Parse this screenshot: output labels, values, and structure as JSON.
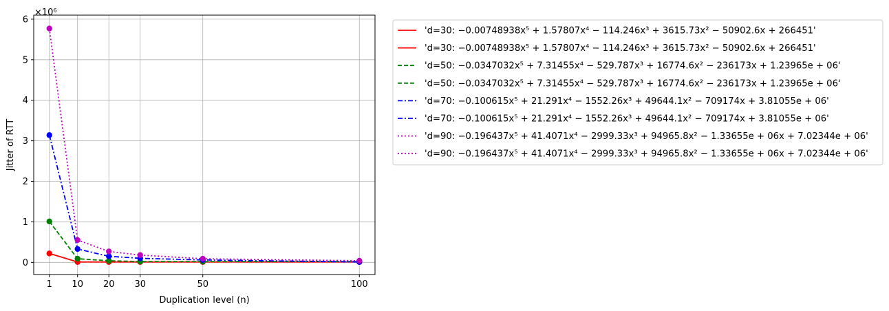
{
  "chart_data": {
    "type": "line",
    "title": "",
    "xlabel": "Duplication level (n)",
    "ylabel": "Jitter of RTT",
    "y_offset_text": "×10⁶",
    "x": [
      1,
      10,
      20,
      30,
      50,
      100
    ],
    "x_ticks": [
      "1",
      "10",
      "20",
      "30",
      "50",
      "100"
    ],
    "y_ticks": [
      "0",
      "1",
      "2",
      "3",
      "4",
      "5",
      "6"
    ],
    "y_tick_values": [
      0,
      1,
      2,
      3,
      4,
      5,
      6
    ],
    "xlim": [
      -4,
      105
    ],
    "ylim": [
      -0.3,
      6.1
    ],
    "grid": true,
    "legend_position": "outside-upper-right",
    "series": [
      {
        "name": "'d=30: −0.00748938x⁵ + 1.57807x⁴ − 114.246x³ + 3615.73x² − 50902.6x + 266451'",
        "color": "#ff0000",
        "dash": "solid",
        "values": [
          0.22,
          0.01,
          0.01,
          0.01,
          0.01,
          0.01
        ]
      },
      {
        "name": "'d=50: −0.0347032x⁵ + 7.31455x⁴ − 529.787x³ + 16774.6x² − 236173x + 1.23965e + 06'",
        "color": "#008000",
        "dash": "dashed",
        "values": [
          1.01,
          0.09,
          0.04,
          0.02,
          0.02,
          0.02
        ]
      },
      {
        "name": "'d=70: −0.100615x⁵ + 21.291x⁴ − 1552.26x³ + 49644.1x² − 709174x + 3.81055e + 06'",
        "color": "#0000ff",
        "dash": "dashdot",
        "values": [
          3.14,
          0.33,
          0.15,
          0.1,
          0.06,
          0.01
        ]
      },
      {
        "name": "'d=90: −0.196437x⁵ + 41.4071x⁴ − 2999.33x³ + 94965.8x² − 1.33655e + 06x + 7.02344e + 06'",
        "color": "#bf00bf",
        "dash": "dotted",
        "values": [
          5.77,
          0.55,
          0.27,
          0.18,
          0.09,
          0.04
        ]
      }
    ],
    "legend_entries": [
      {
        "series": 0,
        "label": "'d=30: −0.00748938x⁵ + 1.57807x⁴ − 114.246x³ + 3615.73x² − 50902.6x + 266451'"
      },
      {
        "series": 0,
        "label": "'d=30: −0.00748938x⁵ + 1.57807x⁴ − 114.246x³ + 3615.73x² − 50902.6x + 266451'"
      },
      {
        "series": 1,
        "label": "'d=50: −0.0347032x⁵ + 7.31455x⁴ − 529.787x³ + 16774.6x² − 236173x + 1.23965e + 06'"
      },
      {
        "series": 1,
        "label": "'d=50: −0.0347032x⁵ + 7.31455x⁴ − 529.787x³ + 16774.6x² − 236173x + 1.23965e + 06'"
      },
      {
        "series": 2,
        "label": "'d=70: −0.100615x⁵ + 21.291x⁴ − 1552.26x³ + 49644.1x² − 709174x + 3.81055e + 06'"
      },
      {
        "series": 2,
        "label": "'d=70: −0.100615x⁵ + 21.291x⁴ − 1552.26x³ + 49644.1x² − 709174x + 3.81055e + 06'"
      },
      {
        "series": 3,
        "label": "'d=90: −0.196437x⁵ + 41.4071x⁴ − 2999.33x³ + 94965.8x² − 1.33655e + 06x + 7.02344e + 06'"
      },
      {
        "series": 3,
        "label": "'d=90: −0.196437x⁵ + 41.4071x⁴ − 2999.33x³ + 94965.8x² − 1.33655e + 06x + 7.02344e + 06'"
      }
    ]
  }
}
